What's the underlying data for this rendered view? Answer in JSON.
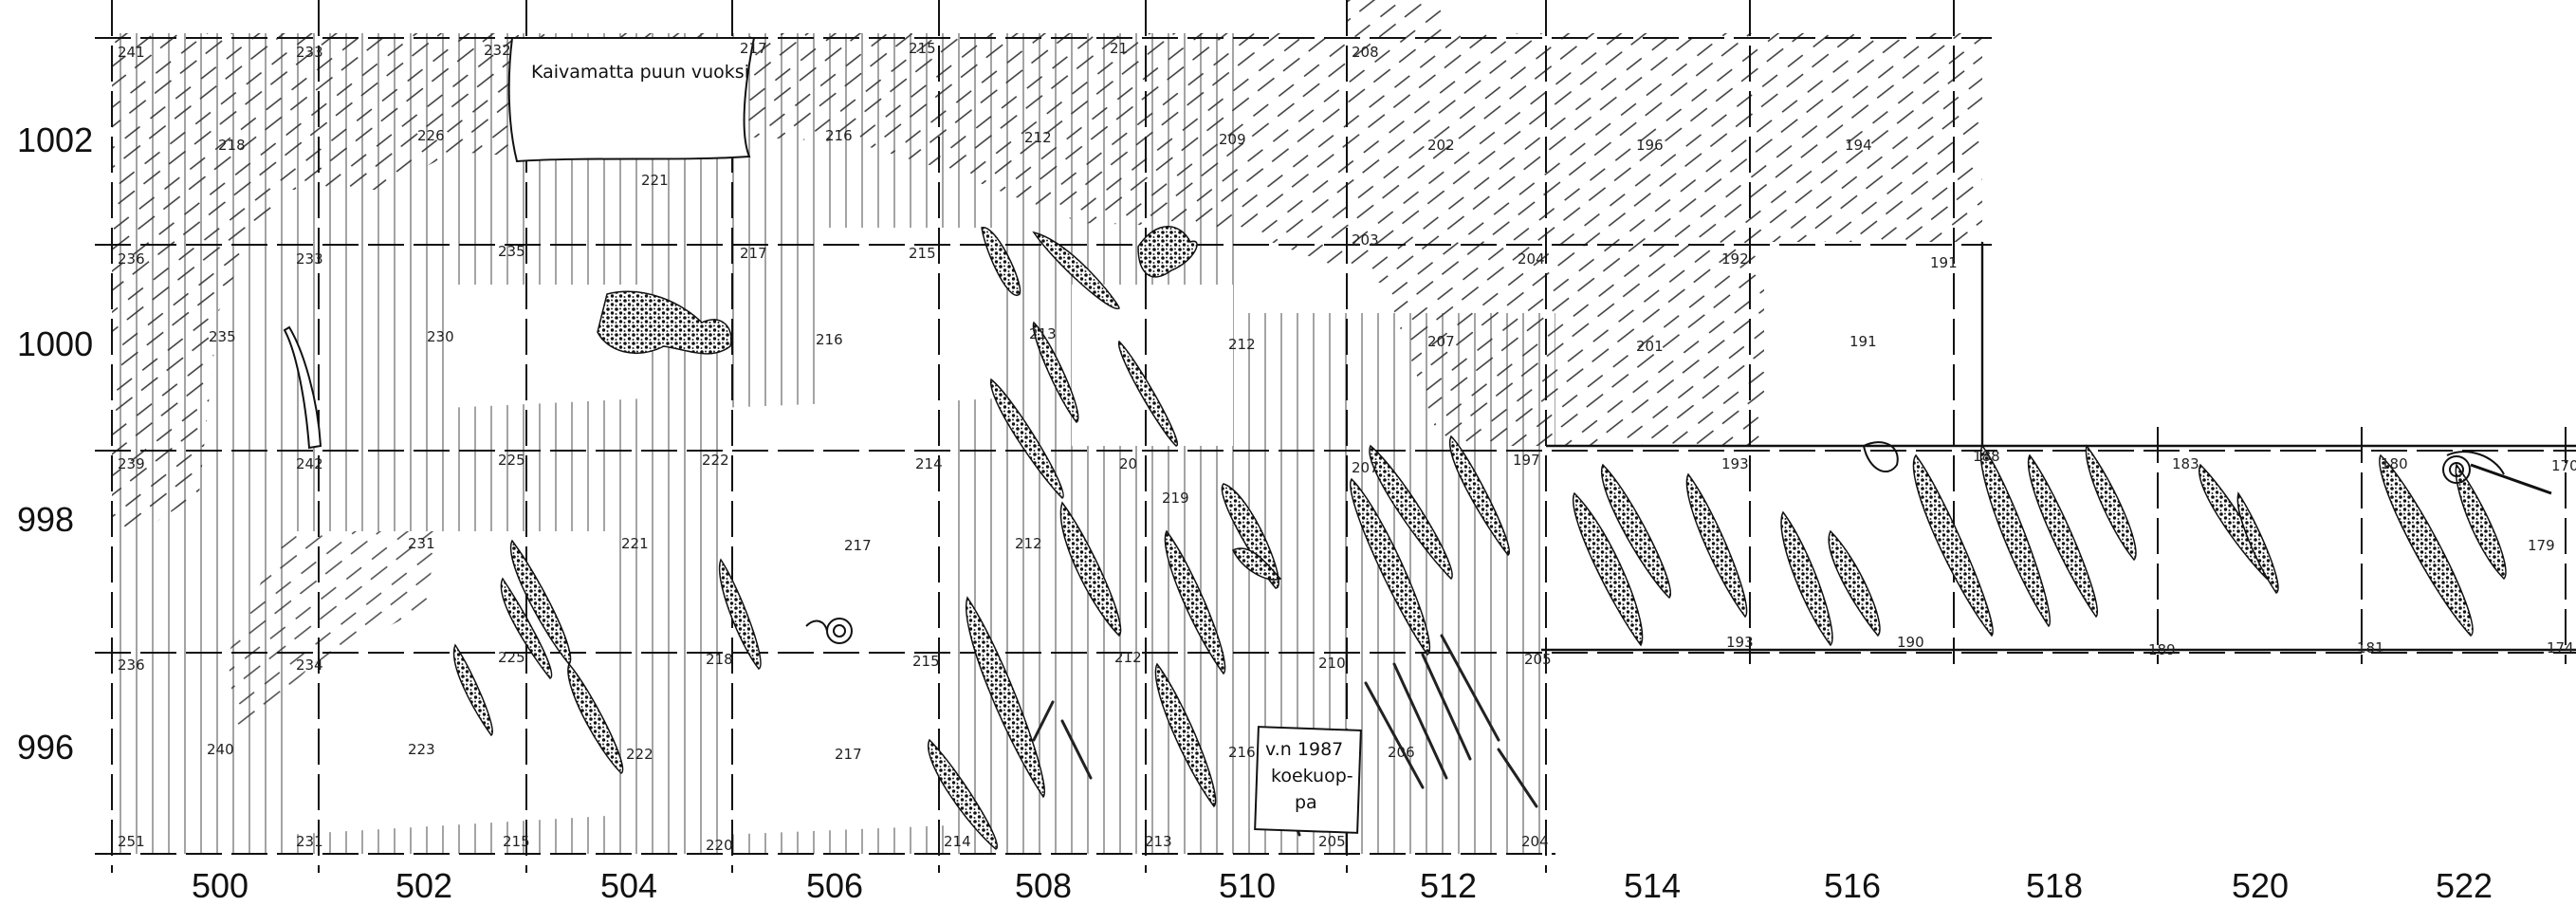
{
  "notes": {
    "top": "Kaivamatta puun vuoksi",
    "box": [
      "v.n 1987",
      "koekuop-",
      "pa"
    ]
  },
  "x_axis": {
    "labels": [
      "500",
      "502",
      "504",
      "506",
      "508",
      "510",
      "512",
      "514",
      "516",
      "518",
      "520",
      "522"
    ]
  },
  "y_axis": {
    "labels": [
      "1002",
      "1000",
      "998",
      "996"
    ]
  },
  "cell_numbers": [
    {
      "t": "241"
    },
    {
      "t": "233"
    },
    {
      "t": "232"
    },
    {
      "t": "217"
    },
    {
      "t": "215"
    },
    {
      "t": "21"
    },
    {
      "t": "208"
    },
    {
      "t": "218"
    },
    {
      "t": "226"
    },
    {
      "t": "221"
    },
    {
      "t": "216"
    },
    {
      "t": "212"
    },
    {
      "t": "209"
    },
    {
      "t": "202"
    },
    {
      "t": "196"
    },
    {
      "t": "194"
    },
    {
      "t": "236"
    },
    {
      "t": "233"
    },
    {
      "t": "235"
    },
    {
      "t": "217"
    },
    {
      "t": "215"
    },
    {
      "t": "203"
    },
    {
      "t": "204"
    },
    {
      "t": "192"
    },
    {
      "t": "191"
    },
    {
      "t": "235"
    },
    {
      "t": "230"
    },
    {
      "t": "216"
    },
    {
      "t": "213"
    },
    {
      "t": "212"
    },
    {
      "t": "207"
    },
    {
      "t": "201"
    },
    {
      "t": "191"
    },
    {
      "t": "239"
    },
    {
      "t": "242"
    },
    {
      "t": "225"
    },
    {
      "t": "222"
    },
    {
      "t": "214"
    },
    {
      "t": "20"
    },
    {
      "t": "207"
    },
    {
      "t": "197"
    },
    {
      "t": "193"
    },
    {
      "t": "188"
    },
    {
      "t": "183"
    },
    {
      "t": "180"
    },
    {
      "t": "170"
    },
    {
      "t": "231"
    },
    {
      "t": "221"
    },
    {
      "t": "217"
    },
    {
      "t": "212"
    },
    {
      "t": "219"
    },
    {
      "t": "179"
    },
    {
      "t": "236"
    },
    {
      "t": "234"
    },
    {
      "t": "225"
    },
    {
      "t": "218"
    },
    {
      "t": "215"
    },
    {
      "t": "212"
    },
    {
      "t": "210"
    },
    {
      "t": "205"
    },
    {
      "t": "193"
    },
    {
      "t": "190"
    },
    {
      "t": "189"
    },
    {
      "t": "181"
    },
    {
      "t": "174"
    },
    {
      "t": "240"
    },
    {
      "t": "223"
    },
    {
      "t": "222"
    },
    {
      "t": "217"
    },
    {
      "t": "216"
    },
    {
      "t": "206"
    },
    {
      "t": "251"
    },
    {
      "t": "231"
    },
    {
      "t": "215"
    },
    {
      "t": "220"
    },
    {
      "t": "214"
    },
    {
      "t": "213"
    },
    {
      "t": "205"
    },
    {
      "t": "204"
    }
  ]
}
